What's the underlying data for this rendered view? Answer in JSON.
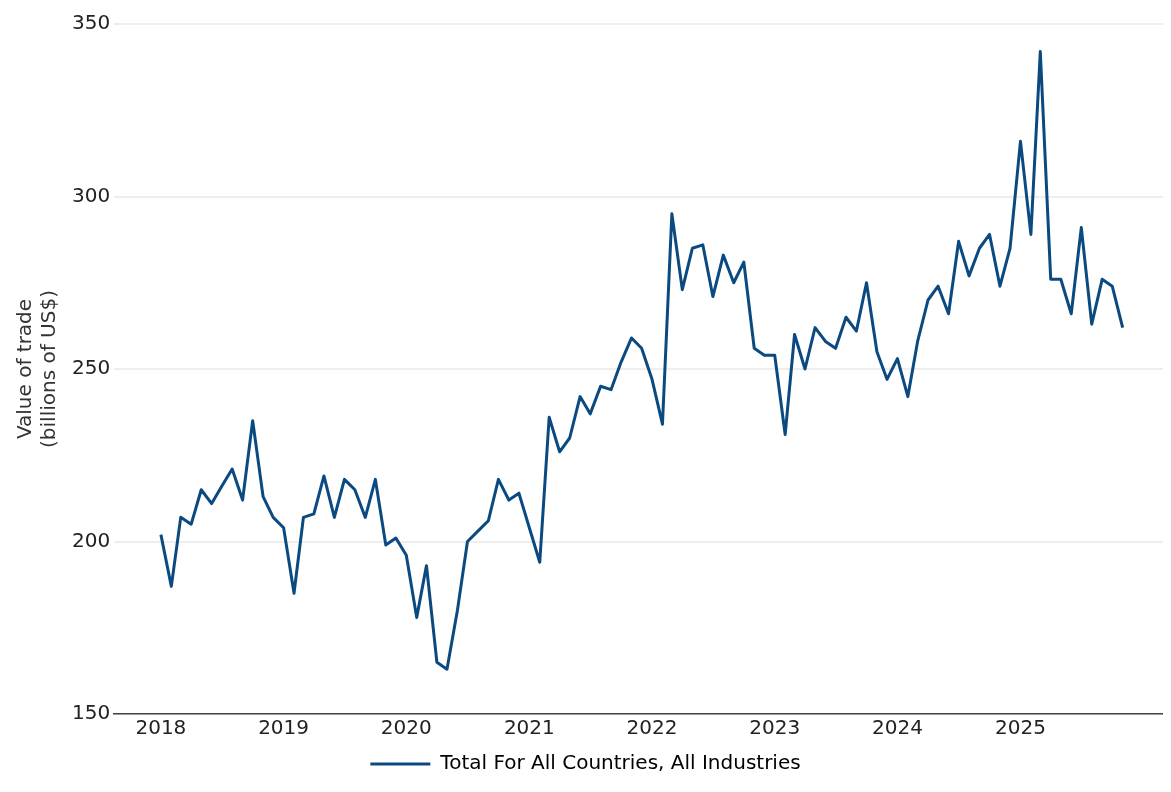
{
  "chart_data": {
    "type": "line",
    "ylabel": "Value of trade\n(billions of US$)",
    "x": [
      "2018-01",
      "2018-02",
      "2018-03",
      "2018-04",
      "2018-05",
      "2018-06",
      "2018-07",
      "2018-08",
      "2018-09",
      "2018-10",
      "2018-11",
      "2018-12",
      "2019-01",
      "2019-02",
      "2019-03",
      "2019-04",
      "2019-05",
      "2019-06",
      "2019-07",
      "2019-08",
      "2019-09",
      "2019-10",
      "2019-11",
      "2019-12",
      "2020-01",
      "2020-02",
      "2020-03",
      "2020-04",
      "2020-05",
      "2020-06",
      "2020-07",
      "2020-08",
      "2020-09",
      "2020-10",
      "2020-11",
      "2020-12",
      "2021-01",
      "2021-02",
      "2021-03",
      "2021-04",
      "2021-05",
      "2021-06",
      "2021-07",
      "2021-08",
      "2021-09",
      "2021-10",
      "2021-11",
      "2021-12",
      "2022-01",
      "2022-02",
      "2022-03",
      "2022-04",
      "2022-05",
      "2022-06",
      "2022-07",
      "2022-08",
      "2022-09",
      "2022-10",
      "2022-11",
      "2022-12",
      "2023-01",
      "2023-02",
      "2023-03",
      "2023-04",
      "2023-05",
      "2023-06",
      "2023-07",
      "2023-08",
      "2023-09",
      "2023-10",
      "2023-11",
      "2023-12",
      "2024-01",
      "2024-02",
      "2024-03",
      "2024-04",
      "2024-05",
      "2024-06",
      "2024-07",
      "2024-08",
      "2024-09",
      "2024-10",
      "2024-11",
      "2024-12",
      "2025-01",
      "2025-02",
      "2025-03",
      "2025-04",
      "2025-05",
      "2025-06",
      "2025-07",
      "2025-08",
      "2025-09",
      "2025-10",
      "2025-11"
    ],
    "series": [
      {
        "name": "Total For All Countries, All Industries",
        "color": "#0b4a80",
        "values": [
          202,
          187,
          207,
          205,
          215,
          211,
          216,
          221,
          212,
          235,
          213,
          207,
          204,
          185,
          207,
          208,
          219,
          207,
          218,
          215,
          207,
          218,
          199,
          201,
          196,
          178,
          193,
          165,
          163,
          180,
          200,
          203,
          206,
          218,
          212,
          214,
          204,
          194,
          236,
          226,
          230,
          242,
          237,
          245,
          244,
          252,
          259,
          256,
          247,
          234,
          295,
          273,
          285,
          286,
          271,
          283,
          275,
          281,
          256,
          254,
          254,
          231,
          260,
          250,
          262,
          258,
          256,
          265,
          261,
          275,
          255,
          247,
          253,
          242,
          258,
          270,
          274,
          266,
          287,
          277,
          285,
          289,
          274,
          285,
          316,
          289,
          342,
          276,
          276,
          266,
          291,
          263,
          276,
          274,
          262
        ]
      }
    ],
    "xlim": [
      "2017-08-15",
      "2026-03-01"
    ],
    "xticks": [
      "2018",
      "2019",
      "2020",
      "2021",
      "2022",
      "2023",
      "2024",
      "2025"
    ],
    "ylim": [
      150,
      350
    ],
    "yticks": [
      150,
      200,
      250,
      300,
      350
    ],
    "grid": "y",
    "legend": "bottom",
    "marker": "none",
    "line_style": "solid"
  }
}
